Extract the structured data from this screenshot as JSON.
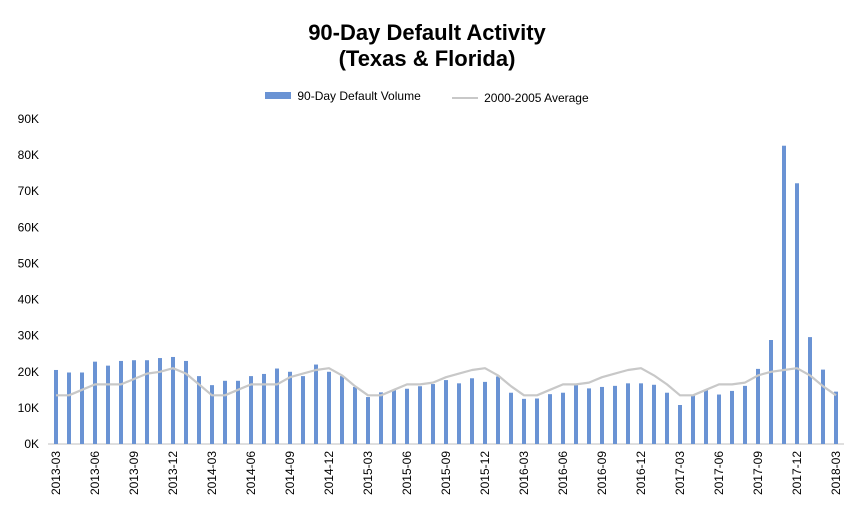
{
  "chart_data": {
    "type": "bar",
    "title": "90-Day Default Activity",
    "subtitle": "(Texas & Florida)",
    "xlabel": "",
    "ylabel": "",
    "ylim": [
      0,
      90000
    ],
    "y_ticks": [
      0,
      10000,
      20000,
      30000,
      40000,
      50000,
      60000,
      70000,
      80000,
      90000
    ],
    "y_tick_labels": [
      "0K",
      "10K",
      "20K",
      "30K",
      "40K",
      "50K",
      "60K",
      "70K",
      "80K",
      "90K"
    ],
    "legend_position": "top-center",
    "grid": false,
    "categories": [
      "2013-03",
      "2013-04",
      "2013-05",
      "2013-06",
      "2013-07",
      "2013-08",
      "2013-09",
      "2013-10",
      "2013-11",
      "2013-12",
      "2014-01",
      "2014-02",
      "2014-03",
      "2014-04",
      "2014-05",
      "2014-06",
      "2014-07",
      "2014-08",
      "2014-09",
      "2014-10",
      "2014-11",
      "2014-12",
      "2015-01",
      "2015-02",
      "2015-03",
      "2015-04",
      "2015-05",
      "2015-06",
      "2015-07",
      "2015-08",
      "2015-09",
      "2015-10",
      "2015-11",
      "2015-12",
      "2016-01",
      "2016-02",
      "2016-03",
      "2016-04",
      "2016-05",
      "2016-06",
      "2016-07",
      "2016-08",
      "2016-09",
      "2016-10",
      "2016-11",
      "2016-12",
      "2017-01",
      "2017-02",
      "2017-03",
      "2017-04",
      "2017-05",
      "2017-06",
      "2017-07",
      "2017-08",
      "2017-09",
      "2017-10",
      "2017-11",
      "2017-12",
      "2018-01",
      "2018-02",
      "2018-03"
    ],
    "x_tick_labels": [
      "2013-03",
      "2013-06",
      "2013-09",
      "2013-12",
      "2014-03",
      "2014-06",
      "2014-09",
      "2014-12",
      "2015-03",
      "2015-06",
      "2015-09",
      "2015-12",
      "2016-03",
      "2016-06",
      "2016-09",
      "2016-12",
      "2017-03",
      "2017-06",
      "2017-09",
      "2017-12",
      "2018-03"
    ],
    "series": [
      {
        "name": "90-Day Default Volume",
        "type": "bar",
        "color": "#6a93d4",
        "values": [
          20500,
          19800,
          19800,
          22800,
          21700,
          23000,
          23200,
          23200,
          23800,
          24100,
          23000,
          18800,
          16300,
          17500,
          17500,
          18800,
          19400,
          20900,
          20000,
          18800,
          22000,
          20000,
          18800,
          15800,
          13000,
          14300,
          15000,
          15300,
          16000,
          16600,
          17700,
          16800,
          18200,
          17200,
          18700,
          14200,
          12500,
          12600,
          13800,
          14200,
          16400,
          15400,
          15800,
          16100,
          16800,
          16800,
          16400,
          14200,
          10800,
          13500,
          15000,
          13700,
          14700,
          16100,
          20800,
          28800,
          82600,
          72200,
          29600,
          20600,
          14500
        ]
      },
      {
        "name": "2000-2005 Average",
        "type": "line",
        "color": "#c8c8c8",
        "values": [
          13500,
          13500,
          15000,
          16500,
          16500,
          16500,
          18000,
          19500,
          20000,
          21000,
          19500,
          16500,
          13500,
          13500,
          15000,
          16500,
          16500,
          16500,
          18500,
          19500,
          20500,
          21000,
          19000,
          16000,
          13500,
          13500,
          15000,
          16500,
          16500,
          17000,
          18500,
          19500,
          20500,
          21000,
          19000,
          16000,
          13500,
          13500,
          15000,
          16500,
          16500,
          17000,
          18500,
          19500,
          20500,
          21000,
          19000,
          16500,
          13500,
          13500,
          15000,
          16500,
          16500,
          17000,
          19000,
          20000,
          20500,
          21000,
          19000,
          16000,
          13500
        ]
      }
    ]
  }
}
